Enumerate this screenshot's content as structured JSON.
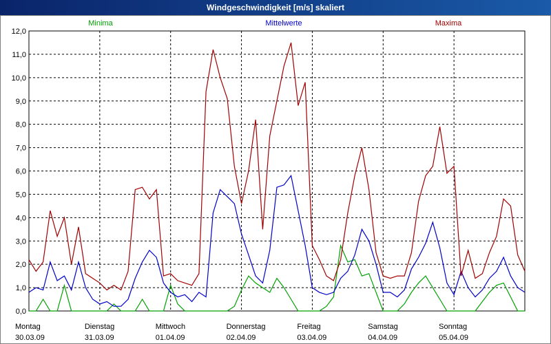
{
  "window": {
    "title": "Windgeschwindigkeit [m/s] skaliert"
  },
  "chart_data": {
    "type": "line",
    "title": "Windgeschwindigkeit [m/s] skaliert",
    "ylim": [
      0,
      12
    ],
    "y_ticks": [
      "0,0",
      "1,0",
      "2,0",
      "3,0",
      "4,0",
      "5,0",
      "6,0",
      "7,0",
      "8,0",
      "9,0",
      "10,0",
      "11,0",
      "12,0"
    ],
    "days": [
      {
        "day": "Montag",
        "date": "30.03.09"
      },
      {
        "day": "Dienstag",
        "date": "31.03.09"
      },
      {
        "day": "Mittwoch",
        "date": "01.04.09"
      },
      {
        "day": "Donnerstag",
        "date": "02.04.09"
      },
      {
        "day": "Freitag",
        "date": "03.04.09"
      },
      {
        "day": "Samstag",
        "date": "04.04.09"
      },
      {
        "day": "Sonntag",
        "date": "05.04.09"
      }
    ],
    "x_range_days": [
      0,
      7
    ],
    "grid": true,
    "series": [
      {
        "name": "Minima",
        "color": "#00a000",
        "x": [
          0,
          0.1,
          0.2,
          0.3,
          0.4,
          0.5,
          0.6,
          0.7,
          0.8,
          0.9,
          1.0,
          1.1,
          1.2,
          1.3,
          1.4,
          1.5,
          1.6,
          1.7,
          1.8,
          1.9,
          2.0,
          2.1,
          2.2,
          2.3,
          2.4,
          2.5,
          2.6,
          2.7,
          2.8,
          2.9,
          3.0,
          3.1,
          3.2,
          3.3,
          3.4,
          3.5,
          3.6,
          3.7,
          3.8,
          3.9,
          4.0,
          4.1,
          4.2,
          4.3,
          4.4,
          4.5,
          4.6,
          4.7,
          4.8,
          4.9,
          5.0,
          5.1,
          5.2,
          5.3,
          5.4,
          5.5,
          5.6,
          5.7,
          5.8,
          5.9,
          6.0,
          6.1,
          6.2,
          6.3,
          6.4,
          6.5,
          6.6,
          6.7,
          6.8,
          6.9,
          7.0
        ],
        "values": [
          0,
          0,
          0.5,
          0,
          0,
          1.1,
          0,
          0,
          0,
          0,
          0,
          0,
          0.3,
          0,
          0,
          0,
          0.5,
          0,
          0,
          0,
          1.1,
          0.3,
          0,
          0,
          0,
          0,
          0,
          0,
          0,
          0.2,
          0.9,
          1.5,
          1.2,
          1.0,
          0.8,
          1.4,
          1.0,
          0.5,
          0,
          0,
          0,
          0,
          0.2,
          0.6,
          2.8,
          2.1,
          2.2,
          1.5,
          1.6,
          0.8,
          0,
          0,
          0,
          0.3,
          0.8,
          1.2,
          1.5,
          1.0,
          0.5,
          0,
          0,
          0,
          0,
          0,
          0.4,
          0.8,
          1.1,
          1.2,
          0.6,
          0,
          0
        ]
      },
      {
        "name": "Mittelwerte",
        "color": "#0000c8",
        "x": [
          0,
          0.1,
          0.2,
          0.3,
          0.4,
          0.5,
          0.6,
          0.7,
          0.8,
          0.9,
          1.0,
          1.1,
          1.2,
          1.3,
          1.4,
          1.5,
          1.6,
          1.7,
          1.8,
          1.9,
          2.0,
          2.1,
          2.2,
          2.3,
          2.4,
          2.5,
          2.6,
          2.7,
          2.8,
          2.9,
          3.0,
          3.1,
          3.2,
          3.3,
          3.4,
          3.5,
          3.6,
          3.7,
          3.8,
          3.9,
          4.0,
          4.1,
          4.2,
          4.3,
          4.4,
          4.5,
          4.6,
          4.7,
          4.8,
          4.9,
          5.0,
          5.1,
          5.2,
          5.3,
          5.4,
          5.5,
          5.6,
          5.7,
          5.8,
          5.9,
          6.0,
          6.1,
          6.2,
          6.3,
          6.4,
          6.5,
          6.6,
          6.7,
          6.8,
          6.9,
          7.0
        ],
        "values": [
          0.8,
          1.0,
          0.9,
          2.1,
          1.3,
          1.5,
          0.9,
          2.1,
          1.0,
          0.5,
          0.3,
          0.4,
          0.2,
          0.2,
          0.5,
          1.4,
          2.1,
          2.6,
          2.3,
          1.2,
          0.8,
          0.6,
          0.7,
          0.4,
          0.8,
          0.6,
          4.2,
          5.2,
          4.9,
          4.6,
          3.3,
          2.4,
          1.5,
          1.2,
          2.6,
          5.3,
          5.4,
          5.8,
          4.3,
          2.8,
          1.0,
          0.8,
          0.7,
          0.8,
          1.4,
          1.7,
          2.4,
          3.5,
          3.0,
          2.0,
          0.8,
          0.8,
          0.6,
          0.9,
          1.8,
          2.3,
          2.9,
          3.8,
          2.7,
          1.2,
          0.7,
          1.7,
          1.0,
          0.6,
          0.9,
          1.4,
          1.7,
          2.3,
          1.5,
          1.0,
          0.8
        ]
      },
      {
        "name": "Maxima",
        "color": "#a00000",
        "x": [
          0,
          0.1,
          0.2,
          0.3,
          0.4,
          0.5,
          0.6,
          0.7,
          0.8,
          0.9,
          1.0,
          1.1,
          1.2,
          1.3,
          1.4,
          1.5,
          1.6,
          1.7,
          1.8,
          1.9,
          2.0,
          2.1,
          2.2,
          2.3,
          2.4,
          2.5,
          2.6,
          2.7,
          2.8,
          2.9,
          3.0,
          3.1,
          3.2,
          3.3,
          3.4,
          3.5,
          3.6,
          3.7,
          3.8,
          3.9,
          4.0,
          4.1,
          4.2,
          4.3,
          4.4,
          4.5,
          4.6,
          4.7,
          4.8,
          4.9,
          5.0,
          5.1,
          5.2,
          5.3,
          5.4,
          5.5,
          5.6,
          5.7,
          5.8,
          5.9,
          6.0,
          6.1,
          6.2,
          6.3,
          6.4,
          6.5,
          6.6,
          6.7,
          6.8,
          6.9,
          7.0
        ],
        "values": [
          2.2,
          1.7,
          2.1,
          4.3,
          3.2,
          4.0,
          2.0,
          3.6,
          1.6,
          1.4,
          1.2,
          0.9,
          1.1,
          0.9,
          1.7,
          5.2,
          5.3,
          4.8,
          5.2,
          1.5,
          1.6,
          1.3,
          1.2,
          1.1,
          1.6,
          9.4,
          11.2,
          10.0,
          9.1,
          6.2,
          4.6,
          6.0,
          8.2,
          3.5,
          7.5,
          9.0,
          10.5,
          11.5,
          8.8,
          9.8,
          2.8,
          2.2,
          1.5,
          1.3,
          2.2,
          4.2,
          5.8,
          7.0,
          5.2,
          2.5,
          1.5,
          1.4,
          1.5,
          1.5,
          2.5,
          4.7,
          5.8,
          6.2,
          7.9,
          5.9,
          6.2,
          1.5,
          2.6,
          1.4,
          1.6,
          2.5,
          3.2,
          4.8,
          4.5,
          2.4,
          1.7
        ]
      }
    ]
  }
}
